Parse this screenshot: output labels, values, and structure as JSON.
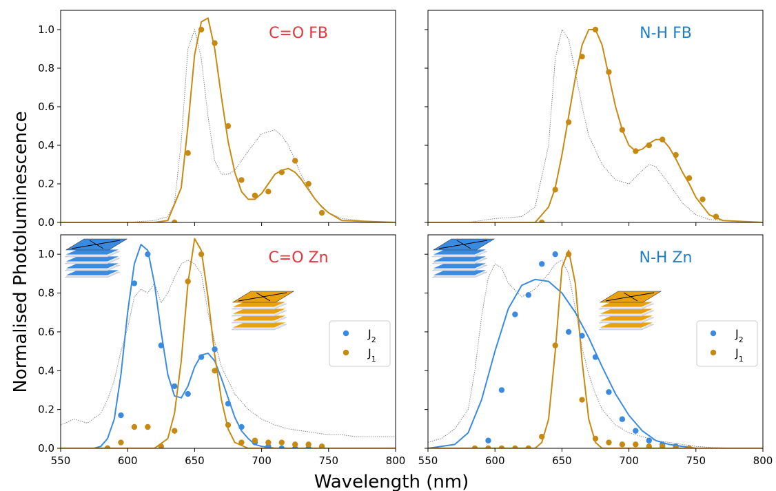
{
  "figure": {
    "xlabel": "Wavelength (nm)",
    "ylabel": "Normalised Photoluminescence"
  },
  "colors": {
    "J1": "#c68a12",
    "J2": "#3a8be0",
    "reference": "#7a7a7a",
    "title_red": "#e8343a",
    "title_blue": "#1f7fc2",
    "stack_orange": "#e8a211",
    "stack_blue": "#3a8be0"
  },
  "chart_data": [
    {
      "type": "line",
      "title": "C=O FB",
      "title_color": "#e8343a",
      "xlim": [
        550,
        800
      ],
      "ylim": [
        0,
        1.1
      ],
      "x_ticks": [
        550,
        600,
        650,
        700,
        750,
        800
      ],
      "y_ticks": [
        0.0,
        0.2,
        0.4,
        0.6,
        0.8,
        1.0
      ],
      "series": [
        {
          "kind": "reference",
          "x": [
            550,
            600,
            620,
            630,
            635,
            640,
            645,
            650,
            655,
            660,
            665,
            670,
            675,
            680,
            690,
            700,
            710,
            715,
            720,
            730,
            740,
            750,
            760,
            780,
            800
          ],
          "y": [
            0.0,
            0.0,
            0.01,
            0.03,
            0.1,
            0.42,
            0.9,
            1.0,
            0.85,
            0.55,
            0.32,
            0.25,
            0.25,
            0.27,
            0.37,
            0.46,
            0.48,
            0.45,
            0.4,
            0.24,
            0.12,
            0.05,
            0.02,
            0.005,
            0.0
          ]
        },
        {
          "kind": "fit",
          "color": "J1",
          "x": [
            550,
            620,
            630,
            640,
            645,
            650,
            655,
            660,
            665,
            670,
            675,
            680,
            685,
            690,
            695,
            700,
            705,
            710,
            715,
            720,
            725,
            730,
            735,
            740,
            745,
            750,
            760,
            800
          ],
          "y": [
            0.0,
            0.0,
            0.01,
            0.18,
            0.5,
            0.87,
            1.04,
            1.06,
            0.9,
            0.65,
            0.42,
            0.26,
            0.16,
            0.12,
            0.12,
            0.15,
            0.2,
            0.25,
            0.27,
            0.28,
            0.26,
            0.22,
            0.17,
            0.12,
            0.08,
            0.05,
            0.01,
            0.0
          ]
        },
        {
          "kind": "points",
          "color": "J1",
          "x": [
            635,
            645,
            655,
            665,
            675,
            685,
            695,
            705,
            715,
            725,
            735,
            745
          ],
          "y": [
            0.0,
            0.36,
            1.0,
            0.93,
            0.5,
            0.22,
            0.14,
            0.16,
            0.26,
            0.32,
            0.2,
            0.05
          ]
        }
      ]
    },
    {
      "type": "line",
      "title": "N-H FB",
      "title_color": "#1f7fc2",
      "xlim": [
        550,
        800
      ],
      "ylim": [
        0,
        1.1
      ],
      "x_ticks": [
        550,
        600,
        650,
        700,
        750,
        800
      ],
      "y_ticks": [
        0.0,
        0.2,
        0.4,
        0.6,
        0.8,
        1.0
      ],
      "series": [
        {
          "kind": "reference",
          "x": [
            550,
            580,
            600,
            620,
            630,
            640,
            645,
            650,
            655,
            660,
            665,
            670,
            680,
            690,
            700,
            710,
            715,
            720,
            730,
            740,
            750,
            760,
            780,
            800
          ],
          "y": [
            0.0,
            0.0,
            0.02,
            0.03,
            0.08,
            0.4,
            0.85,
            1.0,
            0.95,
            0.78,
            0.6,
            0.45,
            0.3,
            0.22,
            0.2,
            0.27,
            0.3,
            0.29,
            0.2,
            0.1,
            0.04,
            0.015,
            0.005,
            0.0
          ]
        },
        {
          "kind": "fit",
          "color": "J1",
          "x": [
            550,
            630,
            640,
            645,
            650,
            655,
            660,
            665,
            670,
            675,
            680,
            685,
            690,
            695,
            700,
            705,
            710,
            715,
            720,
            725,
            730,
            735,
            740,
            745,
            750,
            760,
            770,
            800
          ],
          "y": [
            0.0,
            0.0,
            0.08,
            0.18,
            0.35,
            0.55,
            0.75,
            0.92,
            1.0,
            1.0,
            0.92,
            0.76,
            0.6,
            0.48,
            0.4,
            0.37,
            0.38,
            0.41,
            0.43,
            0.43,
            0.39,
            0.33,
            0.26,
            0.2,
            0.13,
            0.04,
            0.01,
            0.0
          ]
        },
        {
          "kind": "points",
          "color": "J1",
          "x": [
            635,
            645,
            655,
            665,
            675,
            685,
            695,
            705,
            715,
            725,
            735,
            745,
            755,
            765
          ],
          "y": [
            0.0,
            0.17,
            0.52,
            0.86,
            1.0,
            0.78,
            0.48,
            0.37,
            0.4,
            0.43,
            0.35,
            0.23,
            0.12,
            0.03
          ]
        }
      ]
    },
    {
      "type": "line",
      "title": "C=O Zn",
      "title_color": "#e8343a",
      "xlim": [
        550,
        800
      ],
      "ylim": [
        0,
        1.1
      ],
      "x_ticks": [
        550,
        600,
        650,
        700,
        750,
        800
      ],
      "x_tick_labels": [
        "550",
        "600",
        "650",
        "700",
        "750",
        "800"
      ],
      "y_ticks": [
        0.0,
        0.2,
        0.4,
        0.6,
        0.8,
        1.0
      ],
      "legend": {
        "position": "right",
        "entries": [
          {
            "label": "J2",
            "color": "J2"
          },
          {
            "label": "J1",
            "color": "J1"
          }
        ]
      },
      "series": [
        {
          "kind": "reference",
          "x": [
            550,
            560,
            570,
            580,
            585,
            590,
            595,
            600,
            605,
            610,
            615,
            620,
            625,
            630,
            635,
            640,
            645,
            650,
            655,
            660,
            665,
            670,
            675,
            680,
            690,
            700,
            710,
            720,
            730,
            740,
            750,
            760,
            770,
            780,
            790,
            800
          ],
          "y": [
            0.12,
            0.15,
            0.13,
            0.18,
            0.25,
            0.35,
            0.5,
            0.62,
            0.78,
            0.82,
            0.8,
            0.85,
            0.75,
            0.8,
            0.88,
            0.95,
            0.97,
            0.95,
            0.9,
            0.7,
            0.55,
            0.42,
            0.35,
            0.28,
            0.2,
            0.15,
            0.12,
            0.1,
            0.09,
            0.08,
            0.07,
            0.07,
            0.06,
            0.06,
            0.06,
            0.06
          ]
        },
        {
          "kind": "fit",
          "color": "J2",
          "x": [
            550,
            575,
            580,
            585,
            590,
            595,
            600,
            605,
            610,
            615,
            620,
            625,
            630,
            635,
            640,
            645,
            650,
            655,
            660,
            665,
            670,
            675,
            680,
            685,
            690,
            695,
            700,
            710,
            800
          ],
          "y": [
            0.0,
            0.0,
            0.01,
            0.05,
            0.15,
            0.38,
            0.7,
            0.95,
            1.05,
            1.02,
            0.85,
            0.6,
            0.38,
            0.27,
            0.26,
            0.32,
            0.42,
            0.48,
            0.49,
            0.45,
            0.36,
            0.26,
            0.16,
            0.09,
            0.05,
            0.02,
            0.01,
            0.0,
            0.0
          ]
        },
        {
          "kind": "fit",
          "color": "J1",
          "x": [
            550,
            620,
            630,
            635,
            640,
            645,
            650,
            655,
            660,
            665,
            670,
            675,
            680,
            690,
            800
          ],
          "y": [
            0.0,
            0.0,
            0.05,
            0.18,
            0.45,
            0.85,
            1.08,
            1.02,
            0.78,
            0.48,
            0.25,
            0.1,
            0.03,
            0.0,
            0.0
          ]
        },
        {
          "kind": "points",
          "color": "J2",
          "x": [
            585,
            595,
            605,
            615,
            625,
            635,
            645,
            655,
            665,
            675,
            685,
            695,
            705,
            715,
            725,
            735,
            745
          ],
          "y": [
            0.0,
            0.17,
            0.85,
            1.0,
            0.53,
            0.32,
            0.28,
            0.47,
            0.51,
            0.23,
            0.11,
            0.03,
            0.01,
            0.0,
            0.0,
            0.0,
            0.0
          ]
        },
        {
          "kind": "points",
          "color": "J1",
          "x": [
            585,
            595,
            605,
            615,
            625,
            635,
            645,
            655,
            665,
            675,
            685,
            695,
            705,
            715,
            725,
            735,
            745
          ],
          "y": [
            0.0,
            0.03,
            0.11,
            0.11,
            0.01,
            0.09,
            0.86,
            1.0,
            0.4,
            0.12,
            0.03,
            0.04,
            0.03,
            0.03,
            0.02,
            0.02,
            0.01
          ]
        }
      ]
    },
    {
      "type": "line",
      "title": "N-H Zn",
      "title_color": "#1f7fc2",
      "xlim": [
        550,
        800
      ],
      "ylim": [
        0,
        1.1
      ],
      "x_ticks": [
        550,
        600,
        650,
        700,
        750,
        800
      ],
      "x_tick_labels": [
        "550",
        "600",
        "650",
        "700",
        "750",
        "800"
      ],
      "y_ticks": [
        0.0,
        0.2,
        0.4,
        0.6,
        0.8,
        1.0
      ],
      "legend": {
        "position": "right",
        "entries": [
          {
            "label": "J2",
            "color": "J2"
          },
          {
            "label": "J1",
            "color": "J1"
          }
        ]
      },
      "series": [
        {
          "kind": "reference",
          "x": [
            550,
            560,
            570,
            580,
            585,
            590,
            595,
            600,
            605,
            610,
            620,
            630,
            640,
            645,
            650,
            655,
            660,
            665,
            670,
            675,
            680,
            690,
            700,
            710,
            720,
            730,
            740,
            750,
            760,
            780,
            800
          ],
          "y": [
            0.03,
            0.05,
            0.1,
            0.2,
            0.4,
            0.68,
            0.88,
            0.95,
            0.93,
            0.85,
            0.78,
            0.82,
            0.9,
            0.95,
            0.97,
            0.9,
            0.72,
            0.52,
            0.38,
            0.28,
            0.2,
            0.12,
            0.08,
            0.06,
            0.04,
            0.03,
            0.02,
            0.01,
            0.005,
            0.0,
            0.0
          ]
        },
        {
          "kind": "fit",
          "color": "J2",
          "x": [
            550,
            570,
            580,
            590,
            600,
            610,
            620,
            630,
            640,
            650,
            660,
            670,
            680,
            690,
            700,
            710,
            720,
            730,
            740,
            750,
            800
          ],
          "y": [
            0.0,
            0.02,
            0.08,
            0.25,
            0.5,
            0.72,
            0.84,
            0.87,
            0.86,
            0.8,
            0.7,
            0.57,
            0.42,
            0.28,
            0.17,
            0.09,
            0.04,
            0.02,
            0.01,
            0.0,
            0.0
          ]
        },
        {
          "kind": "fit",
          "color": "J1",
          "x": [
            550,
            630,
            635,
            640,
            645,
            650,
            655,
            660,
            665,
            670,
            675,
            680,
            800
          ],
          "y": [
            0.0,
            0.0,
            0.03,
            0.15,
            0.5,
            0.93,
            1.02,
            0.85,
            0.45,
            0.15,
            0.03,
            0.0,
            0.0
          ]
        },
        {
          "kind": "points",
          "color": "J2",
          "x": [
            595,
            605,
            615,
            625,
            635,
            645,
            655,
            665,
            675,
            685,
            695,
            705,
            715,
            725,
            735,
            745
          ],
          "y": [
            0.04,
            0.3,
            0.69,
            0.79,
            0.95,
            1.0,
            0.6,
            0.58,
            0.47,
            0.29,
            0.15,
            0.09,
            0.04,
            0.02,
            0.01,
            0.0
          ]
        },
        {
          "kind": "points",
          "color": "J1",
          "x": [
            585,
            595,
            605,
            615,
            625,
            635,
            645,
            655,
            665,
            675,
            685,
            695,
            705,
            715,
            725,
            735,
            745
          ],
          "y": [
            0.0,
            0.0,
            0.0,
            0.0,
            0.0,
            0.06,
            0.53,
            1.0,
            0.25,
            0.05,
            0.03,
            0.02,
            0.02,
            0.01,
            0.01,
            0.0,
            0.0
          ]
        }
      ]
    }
  ]
}
